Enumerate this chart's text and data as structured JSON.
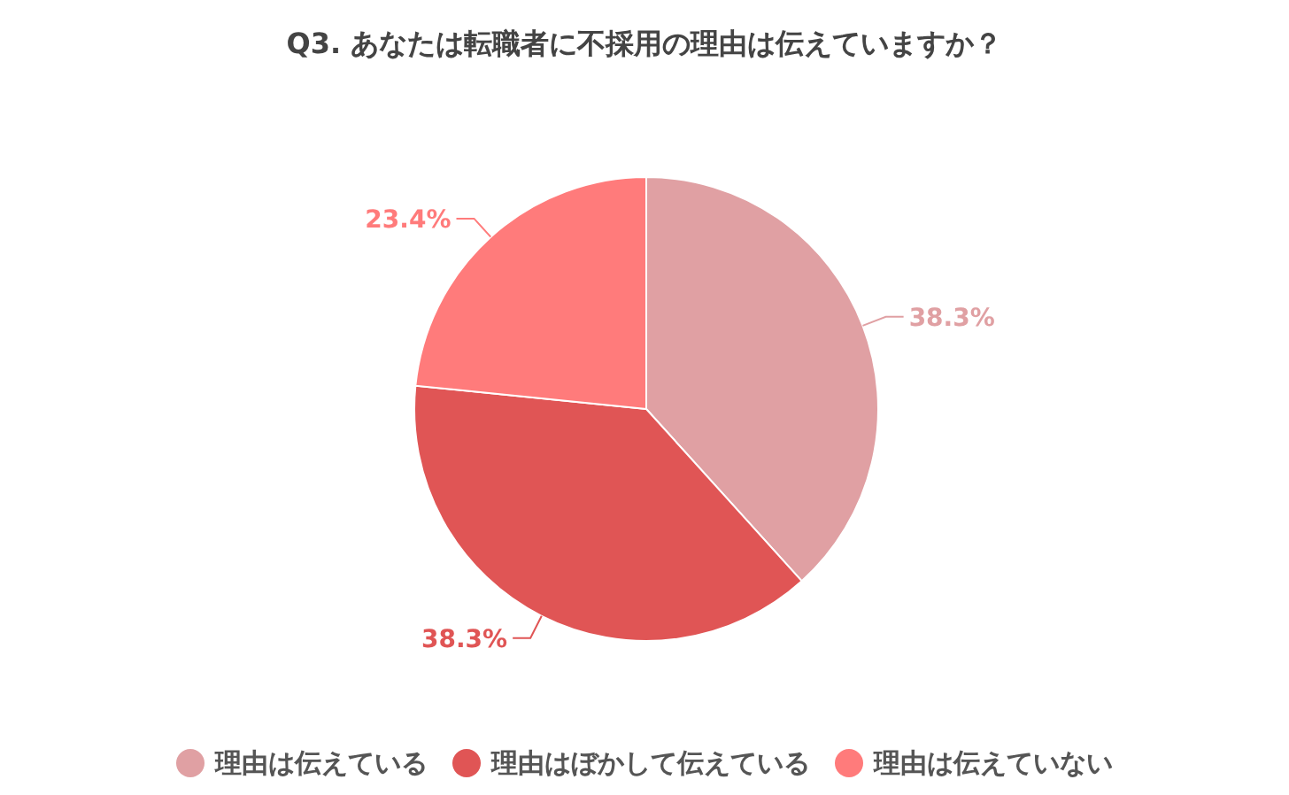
{
  "chart_data": {
    "type": "pie",
    "title": "Q3. あなたは転職者に不採用の理由は伝えていますか？",
    "categories": [
      "理由は伝えている",
      "理由はぼかして伝えている",
      "理由は伝えていない"
    ],
    "values": [
      38.3,
      38.3,
      23.4
    ],
    "colors": [
      "#e0a0a3",
      "#e05555",
      "#ff7b7b"
    ],
    "value_labels": [
      "38.3%",
      "38.3%",
      "23.4%"
    ],
    "legend": "bottom"
  }
}
